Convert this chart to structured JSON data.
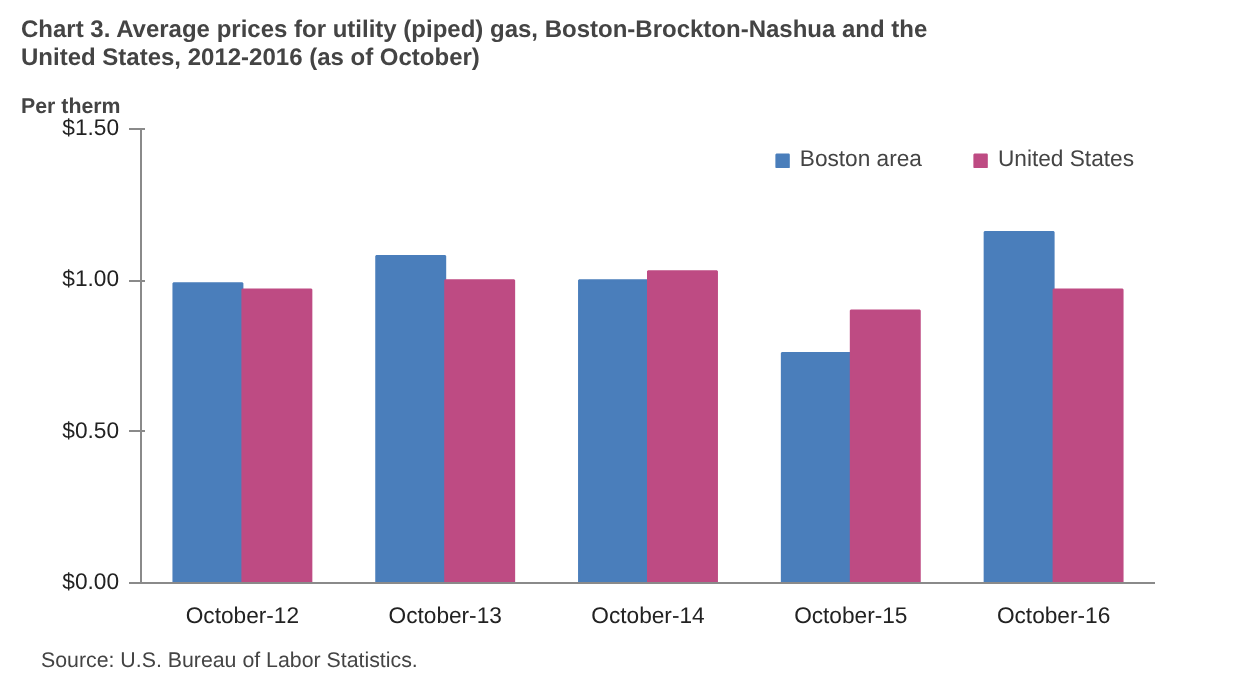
{
  "chart_data": {
    "type": "bar",
    "title": "Chart 3. Average prices for utility  (piped) gas, Boston-Brockton-Nashua and the\nUnited  States, 2012-2016 (as of October)",
    "ylabel": "Per therm",
    "categories": [
      "October-12",
      "October-13",
      "October-14",
      "October-15",
      "October-16"
    ],
    "series": [
      {
        "name": "Boston area",
        "color": "#4a7ebb",
        "values": [
          0.99,
          1.08,
          1.0,
          0.76,
          1.16
        ]
      },
      {
        "name": "United States",
        "color": "#be4b83",
        "values": [
          0.97,
          1.0,
          1.03,
          0.9,
          0.97
        ]
      }
    ],
    "ylim": [
      0,
      1.5
    ],
    "yticks": [
      {
        "value": 0,
        "label": "$0.00"
      },
      {
        "value": 0.5,
        "label": "$0.50"
      },
      {
        "value": 1.0,
        "label": "$1.00"
      },
      {
        "value": 1.5,
        "label": "$1.50"
      }
    ],
    "grid": false,
    "legend": "top right",
    "annotations": [
      "Source: U.S. Bureau of Labor Statistics."
    ]
  }
}
